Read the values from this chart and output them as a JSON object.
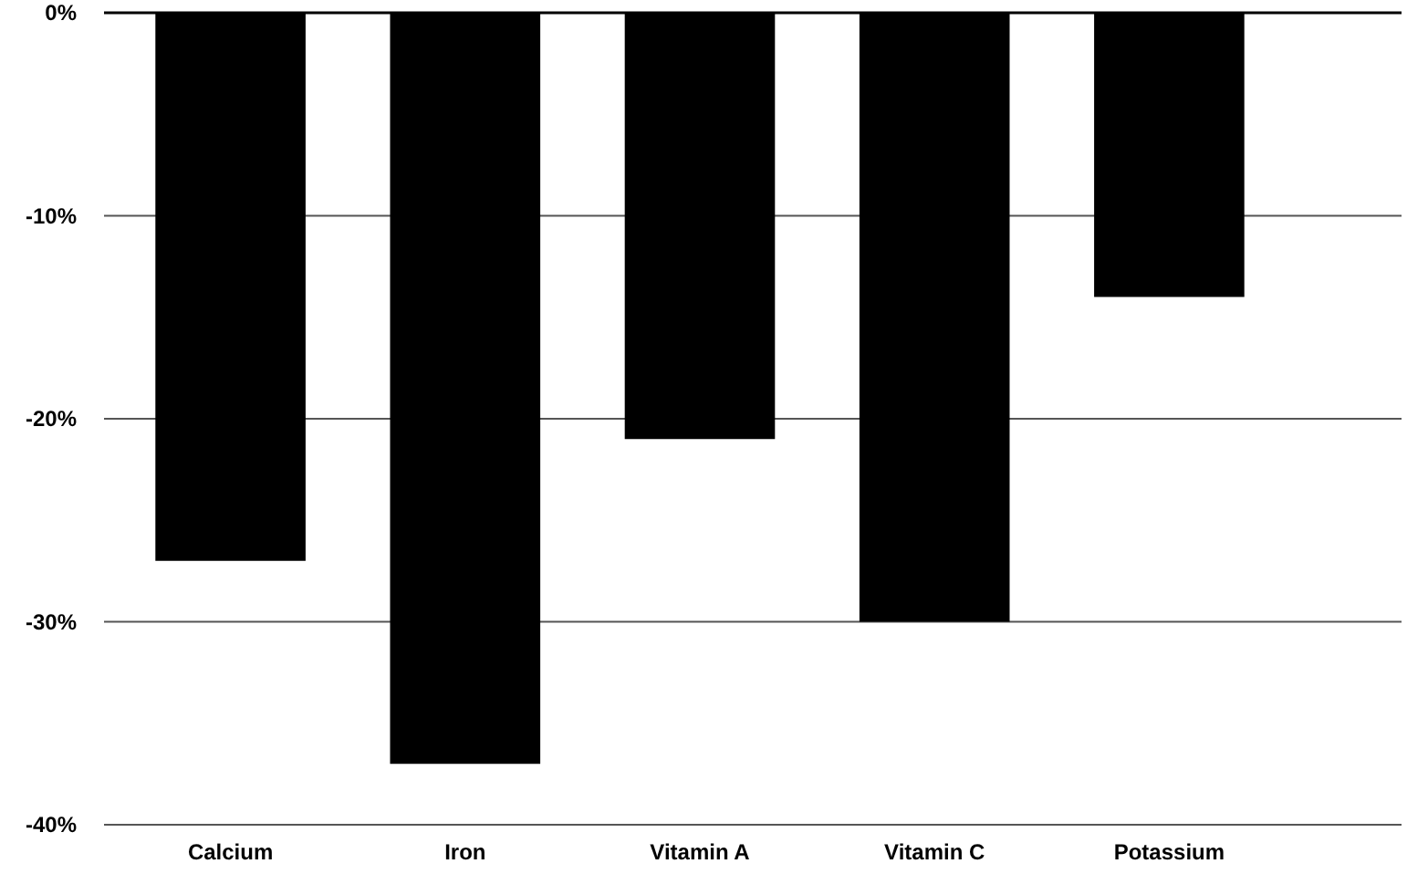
{
  "chart_data": {
    "type": "bar",
    "categories": [
      "Calcium",
      "Iron",
      "Vitamin A",
      "Vitamin C",
      "Potassium"
    ],
    "values": [
      -27,
      -37,
      -21,
      -30,
      -14
    ],
    "color": "#000000",
    "ylim": [
      -40,
      0
    ],
    "yticks": [
      {
        "value": -40,
        "label": "-40%"
      },
      {
        "value": -30,
        "label": "-30%"
      },
      {
        "value": -20,
        "label": "-20%"
      },
      {
        "value": -10,
        "label": "-10%"
      },
      {
        "value": 0,
        "label": "0%"
      }
    ],
    "grid": "y"
  }
}
